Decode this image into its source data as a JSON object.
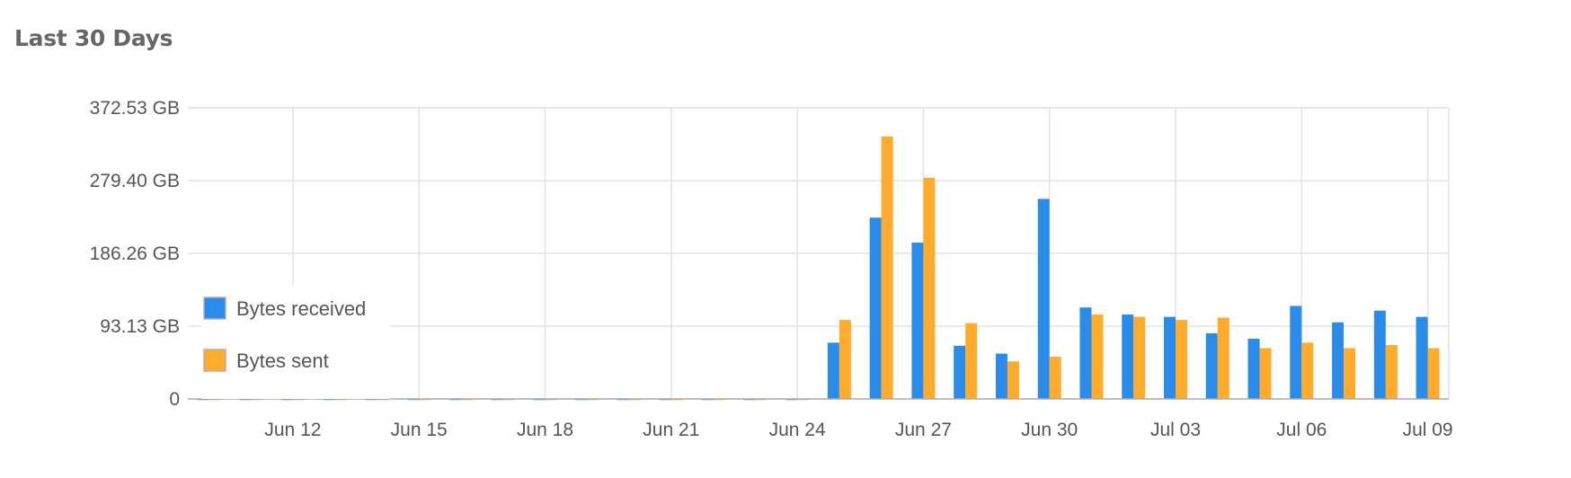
{
  "panel": {
    "title": "Last 30 Days"
  },
  "chart_data": {
    "type": "bar",
    "title": "",
    "xlabel": "",
    "ylabel": "",
    "categories": [
      "Jun 10",
      "Jun 11",
      "Jun 12",
      "Jun 13",
      "Jun 14",
      "Jun 15",
      "Jun 16",
      "Jun 17",
      "Jun 18",
      "Jun 19",
      "Jun 20",
      "Jun 21",
      "Jun 22",
      "Jun 23",
      "Jun 24",
      "Jun 25",
      "Jun 26",
      "Jun 27",
      "Jun 28",
      "Jun 29",
      "Jun 30",
      "Jul 01",
      "Jul 02",
      "Jul 03",
      "Jul 04",
      "Jul 05",
      "Jul 06",
      "Jul 07",
      "Jul 08",
      "Jul 09"
    ],
    "x_tick_labels": [
      "Jun 12",
      "Jun 15",
      "Jun 18",
      "Jun 21",
      "Jun 24",
      "Jun 27",
      "Jun 30",
      "Jul 03",
      "Jul 06",
      "Jul 09"
    ],
    "y_tick_labels": [
      "0",
      "93.13 GB",
      "186.26 GB",
      "279.40 GB",
      "372.53 GB"
    ],
    "y_ticks": [
      0,
      93.13,
      186.26,
      279.4,
      372.53
    ],
    "ylim": [
      0,
      372.53
    ],
    "y_unit": "GB",
    "grid": true,
    "legend_position": "left",
    "series": [
      {
        "name": "Bytes received",
        "color": "#2b8be8",
        "values": [
          0.3,
          0.3,
          0.3,
          0.3,
          0.3,
          0.3,
          0.3,
          0.3,
          0.3,
          0.3,
          0.3,
          0.3,
          0.3,
          0.3,
          0.3,
          72,
          232,
          200,
          68,
          58,
          256,
          117,
          108,
          105,
          84,
          77,
          119,
          98,
          113,
          105
        ]
      },
      {
        "name": "Bytes sent",
        "color": "#ffab2e",
        "values": [
          0.3,
          0.3,
          0.3,
          0.3,
          0.3,
          0.3,
          0.3,
          0.3,
          0.3,
          0.3,
          0.3,
          0.3,
          0.3,
          0.3,
          0.3,
          101,
          336,
          283,
          97,
          48,
          54,
          108,
          105,
          101,
          104,
          65,
          72,
          65,
          69,
          65
        ]
      }
    ]
  }
}
